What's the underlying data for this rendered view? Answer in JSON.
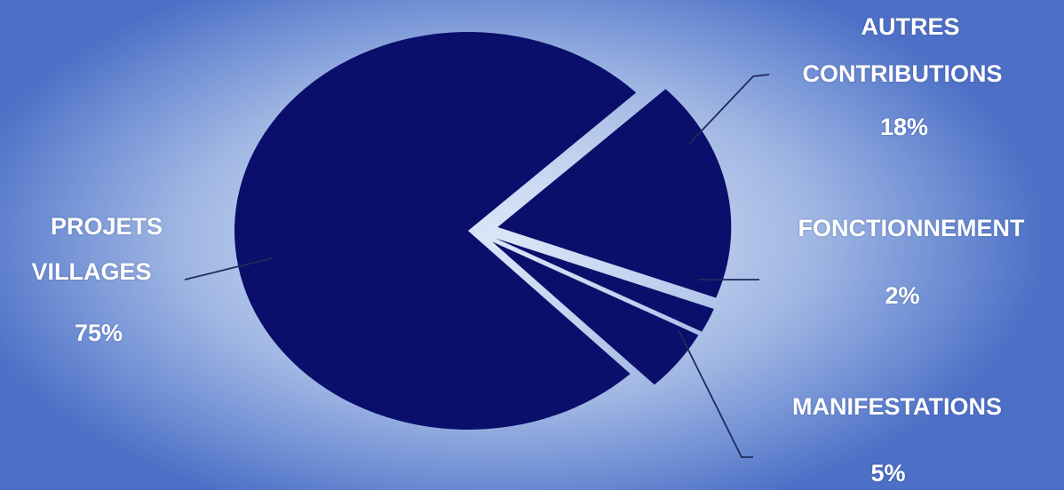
{
  "chart_data": {
    "type": "pie",
    "slices": [
      {
        "label_lines": [
          "AUTRES",
          "CONTRIBUTIONS"
        ],
        "percent_label": "18%",
        "value": 18,
        "exploded": true
      },
      {
        "label_lines": [
          "FONCTIONNEMENT"
        ],
        "percent_label": "2%",
        "value": 2,
        "exploded": true
      },
      {
        "label_lines": [
          "MANIFESTATIONS"
        ],
        "percent_label": "5%",
        "value": 5,
        "exploded": true
      },
      {
        "label_lines": [
          "PROJETS",
          "VILLAGES"
        ],
        "percent_label": "75%",
        "value": 75,
        "exploded": false
      }
    ],
    "colors": {
      "slice": "#0a0f6b",
      "label_text": "#ffffff",
      "leader_line": "#1f2a5c"
    },
    "legend": "none",
    "grid": false
  }
}
